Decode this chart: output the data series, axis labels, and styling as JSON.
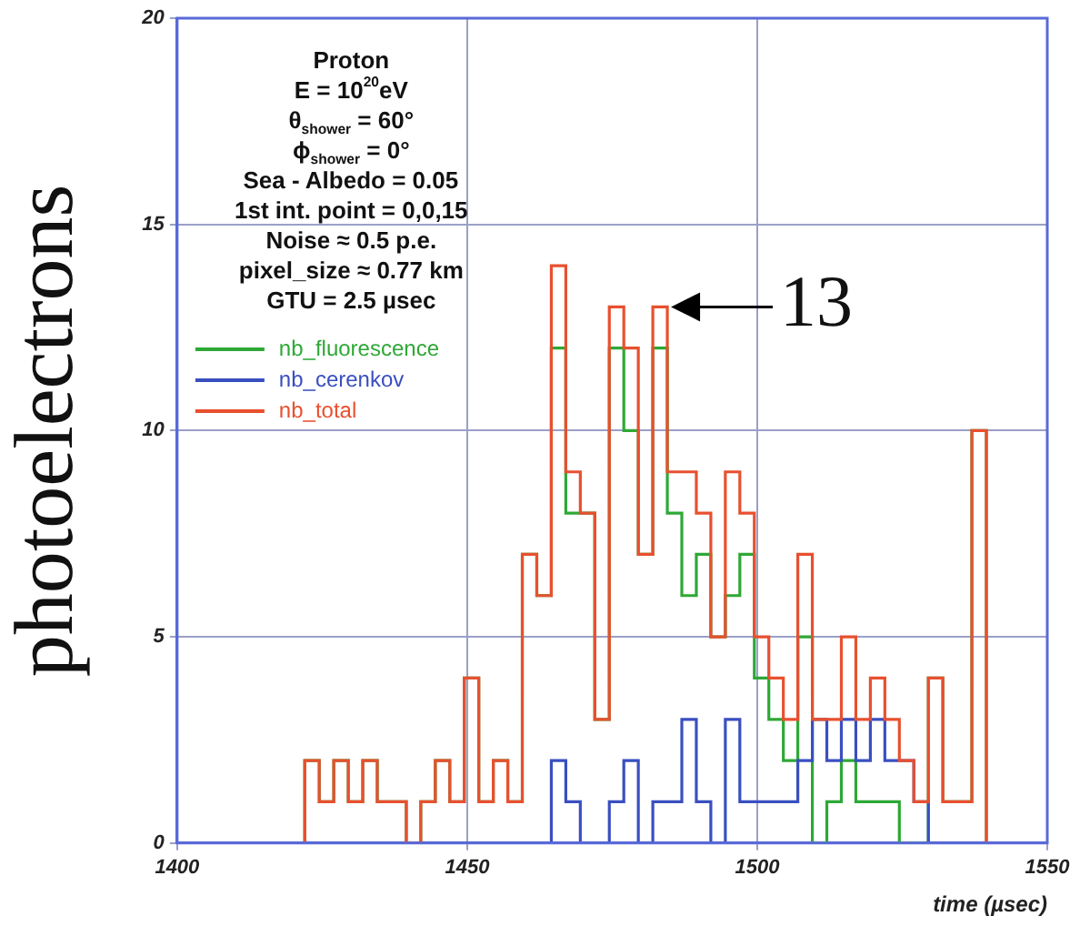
{
  "chart_data": {
    "type": "histogram",
    "xlabel": "time (µsec)",
    "ylabel": "photoelectrons",
    "bins": [
      1422,
      1424.5,
      1427,
      1429.5,
      1432,
      1434.5,
      1437,
      1439.5,
      1442,
      1444.5,
      1447,
      1449.5,
      1452,
      1454.5,
      1457,
      1459.5,
      1462,
      1464.5,
      1467,
      1469.5,
      1472,
      1474.5,
      1477,
      1479.5,
      1482,
      1484.5,
      1487,
      1489.5,
      1492,
      1494.5,
      1497,
      1499.5,
      1502,
      1504.5,
      1507,
      1509.5,
      1512,
      1514.5,
      1517,
      1519.5,
      1522,
      1524.5,
      1527,
      1529.5,
      1532,
      1534.5,
      1537,
      1539.5
    ],
    "series": [
      {
        "name": "nb_fluorescence",
        "color": "#2ea836",
        "values": [
          2,
          1,
          2,
          1,
          2,
          1,
          1,
          0,
          1,
          2,
          1,
          4,
          1,
          2,
          1,
          7,
          6,
          12,
          8,
          8,
          3,
          12,
          10,
          7,
          12,
          8,
          6,
          7,
          5,
          6,
          7,
          4,
          3,
          2,
          5,
          0,
          1,
          2,
          1,
          1,
          1,
          0,
          0,
          4,
          1,
          1,
          10
        ]
      },
      {
        "name": "nb_cerenkov",
        "color": "#3a4fc0",
        "values": [
          0,
          0,
          0,
          0,
          0,
          0,
          0,
          0,
          0,
          0,
          0,
          0,
          0,
          0,
          0,
          0,
          0,
          2,
          1,
          0,
          0,
          1,
          2,
          0,
          1,
          1,
          3,
          1,
          0,
          3,
          1,
          1,
          1,
          1,
          2,
          3,
          2,
          3,
          2,
          3,
          2,
          2,
          1,
          0,
          0,
          0,
          0
        ]
      },
      {
        "name": "nb_total",
        "color": "#e8502f",
        "values": [
          2,
          1,
          2,
          1,
          2,
          1,
          1,
          0,
          1,
          2,
          1,
          4,
          1,
          2,
          1,
          7,
          6,
          14,
          9,
          8,
          3,
          13,
          12,
          7,
          13,
          9,
          9,
          8,
          5,
          9,
          8,
          5,
          4,
          3,
          7,
          3,
          3,
          5,
          3,
          4,
          3,
          2,
          1,
          4,
          1,
          1,
          10
        ]
      }
    ],
    "xlim": [
      1400,
      1550
    ],
    "xticks": [
      1400,
      1450,
      1500,
      1550
    ],
    "ylim": [
      0,
      20
    ],
    "yticks": [
      0,
      5,
      10,
      15,
      20
    ],
    "grid": true,
    "legend": "top left",
    "annotations": [
      "Proton",
      "E = 10$^{20}$eV",
      "θ$_{shower}$ = 60°",
      "ϕ$_{shower}$ = 0°",
      "Sea - Albedo = 0.05",
      "1st int. point = 0,0,15",
      "Noise ≈ 0.5 p.e.",
      "pixel_size ≈ 0.77 km",
      "GTU = 2.5 µsec",
      {
        "text": "13",
        "x": 1483.25,
        "y": 13
      }
    ]
  }
}
